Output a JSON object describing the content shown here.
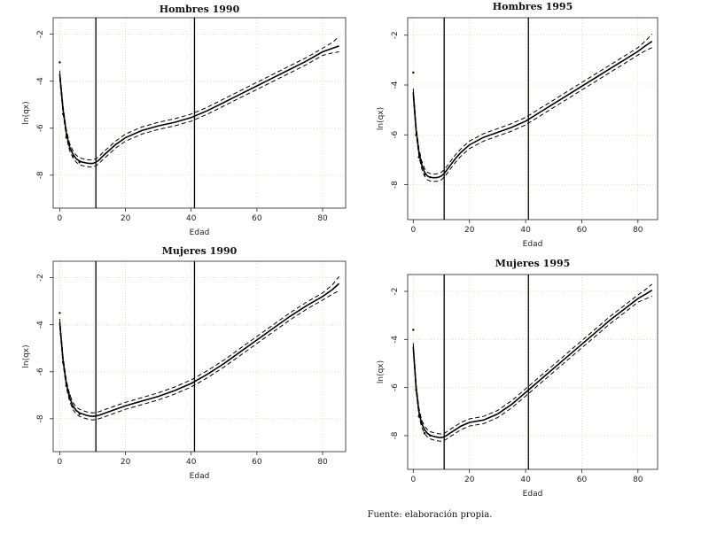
{
  "source_note": "Fuente: elaboración propia.",
  "chart_data": [
    {
      "type": "line",
      "title": "Hombres 1990",
      "xlabel": "Edad",
      "ylabel": "ln(qx)",
      "xlim": [
        -2,
        87
      ],
      "ylim": [
        -9.4,
        -1.3
      ],
      "xticks": [
        0,
        20,
        40,
        60,
        80
      ],
      "yticks": [
        -2,
        -4,
        -6,
        -8
      ],
      "vlines": [
        11,
        41
      ],
      "grid": true,
      "series": [
        {
          "name": "estimate",
          "x": [
            0,
            1,
            2,
            3,
            4,
            5,
            6,
            7,
            8,
            9,
            10,
            11,
            12,
            13,
            15,
            17,
            20,
            25,
            30,
            35,
            40,
            45,
            50,
            55,
            60,
            65,
            70,
            75,
            80,
            83,
            85
          ],
          "y": [
            -3.7,
            -5.2,
            -6.2,
            -6.8,
            -7.1,
            -7.3,
            -7.4,
            -7.45,
            -7.48,
            -7.5,
            -7.5,
            -7.45,
            -7.35,
            -7.2,
            -6.95,
            -6.7,
            -6.4,
            -6.1,
            -5.9,
            -5.75,
            -5.55,
            -5.25,
            -4.9,
            -4.55,
            -4.2,
            -3.85,
            -3.5,
            -3.15,
            -2.75,
            -2.6,
            -2.5
          ]
        },
        {
          "name": "upper",
          "x": [
            0,
            1,
            2,
            3,
            4,
            5,
            6,
            7,
            8,
            9,
            10,
            11,
            12,
            13,
            15,
            17,
            20,
            25,
            30,
            35,
            40,
            45,
            50,
            55,
            60,
            65,
            70,
            75,
            80,
            83,
            85
          ],
          "y": [
            -3.55,
            -5.05,
            -6.05,
            -6.65,
            -6.95,
            -7.15,
            -7.25,
            -7.3,
            -7.33,
            -7.35,
            -7.35,
            -7.3,
            -7.2,
            -7.05,
            -6.8,
            -6.55,
            -6.25,
            -5.95,
            -5.75,
            -5.6,
            -5.4,
            -5.1,
            -4.75,
            -4.4,
            -4.05,
            -3.7,
            -3.35,
            -3.0,
            -2.6,
            -2.35,
            -2.1
          ]
        },
        {
          "name": "lower",
          "x": [
            0,
            1,
            2,
            3,
            4,
            5,
            6,
            7,
            8,
            9,
            10,
            11,
            12,
            13,
            15,
            17,
            20,
            25,
            30,
            35,
            40,
            45,
            50,
            55,
            60,
            65,
            70,
            75,
            80,
            83,
            85
          ],
          "y": [
            -3.85,
            -5.35,
            -6.35,
            -6.95,
            -7.25,
            -7.45,
            -7.55,
            -7.6,
            -7.63,
            -7.65,
            -7.65,
            -7.6,
            -7.5,
            -7.35,
            -7.1,
            -6.85,
            -6.55,
            -6.25,
            -6.05,
            -5.9,
            -5.7,
            -5.4,
            -5.05,
            -4.7,
            -4.35,
            -4.0,
            -3.65,
            -3.3,
            -2.9,
            -2.8,
            -2.75
          ]
        },
        {
          "name": "observed",
          "x": [
            0,
            1,
            2,
            3,
            4,
            6
          ],
          "y": [
            -3.2,
            -5.4,
            -6.4,
            -6.7,
            -7.2,
            -7.45
          ]
        }
      ]
    },
    {
      "type": "line",
      "title": "Hombres 1995",
      "xlabel": "Edad",
      "ylabel": "ln(qx)",
      "xlim": [
        -2,
        87
      ],
      "ylim": [
        -9.4,
        -1.3
      ],
      "xticks": [
        0,
        20,
        40,
        60,
        80
      ],
      "yticks": [
        -2,
        -4,
        -6,
        -8
      ],
      "vlines": [
        11,
        41
      ],
      "grid": true,
      "series": [
        {
          "name": "estimate",
          "x": [
            0,
            1,
            2,
            3,
            4,
            5,
            6,
            7,
            8,
            9,
            10,
            11,
            12,
            13,
            15,
            17,
            20,
            25,
            30,
            35,
            40,
            45,
            50,
            55,
            60,
            65,
            70,
            75,
            80,
            83,
            85
          ],
          "y": [
            -4.3,
            -5.8,
            -6.7,
            -7.2,
            -7.5,
            -7.65,
            -7.7,
            -7.72,
            -7.72,
            -7.7,
            -7.65,
            -7.55,
            -7.4,
            -7.25,
            -6.95,
            -6.7,
            -6.4,
            -6.1,
            -5.9,
            -5.7,
            -5.45,
            -5.1,
            -4.75,
            -4.4,
            -4.05,
            -3.7,
            -3.35,
            -3.0,
            -2.65,
            -2.4,
            -2.25
          ]
        },
        {
          "name": "upper",
          "x": [
            0,
            1,
            2,
            3,
            4,
            5,
            6,
            7,
            8,
            9,
            10,
            11,
            12,
            13,
            15,
            17,
            20,
            25,
            30,
            35,
            40,
            45,
            50,
            55,
            60,
            65,
            70,
            75,
            80,
            83,
            85
          ],
          "y": [
            -4.15,
            -5.65,
            -6.55,
            -7.05,
            -7.35,
            -7.5,
            -7.55,
            -7.57,
            -7.57,
            -7.55,
            -7.5,
            -7.4,
            -7.25,
            -7.1,
            -6.8,
            -6.55,
            -6.25,
            -5.95,
            -5.75,
            -5.55,
            -5.3,
            -4.95,
            -4.6,
            -4.25,
            -3.9,
            -3.55,
            -3.2,
            -2.85,
            -2.5,
            -2.2,
            -1.95
          ]
        },
        {
          "name": "lower",
          "x": [
            0,
            1,
            2,
            3,
            4,
            5,
            6,
            7,
            8,
            9,
            10,
            11,
            12,
            13,
            15,
            17,
            20,
            25,
            30,
            35,
            40,
            45,
            50,
            55,
            60,
            65,
            70,
            75,
            80,
            83,
            85
          ],
          "y": [
            -4.45,
            -5.95,
            -6.85,
            -7.35,
            -7.65,
            -7.8,
            -7.85,
            -7.87,
            -7.87,
            -7.85,
            -7.8,
            -7.7,
            -7.55,
            -7.4,
            -7.1,
            -6.85,
            -6.55,
            -6.25,
            -6.05,
            -5.85,
            -5.6,
            -5.25,
            -4.9,
            -4.55,
            -4.2,
            -3.85,
            -3.5,
            -3.15,
            -2.8,
            -2.6,
            -2.5
          ]
        },
        {
          "name": "observed",
          "x": [
            0,
            1,
            2,
            3,
            4,
            6
          ],
          "y": [
            -3.5,
            -6.0,
            -6.9,
            -7.1,
            -7.6,
            -7.7
          ]
        }
      ]
    },
    {
      "type": "line",
      "title": "Mujeres 1990",
      "xlabel": "Edad",
      "ylabel": "ln(qx)",
      "xlim": [
        -2,
        87
      ],
      "ylim": [
        -9.4,
        -1.3
      ],
      "xticks": [
        0,
        20,
        40,
        60,
        80
      ],
      "yticks": [
        -2,
        -4,
        -6,
        -8
      ],
      "vlines": [
        11,
        41
      ],
      "grid": true,
      "series": [
        {
          "name": "estimate",
          "x": [
            0,
            1,
            2,
            3,
            4,
            5,
            6,
            7,
            8,
            9,
            10,
            11,
            12,
            13,
            15,
            17,
            20,
            25,
            30,
            35,
            40,
            45,
            50,
            55,
            60,
            65,
            70,
            75,
            80,
            83,
            85
          ],
          "y": [
            -3.9,
            -5.5,
            -6.5,
            -7.1,
            -7.45,
            -7.65,
            -7.75,
            -7.8,
            -7.85,
            -7.88,
            -7.9,
            -7.88,
            -7.85,
            -7.8,
            -7.7,
            -7.6,
            -7.45,
            -7.25,
            -7.05,
            -6.8,
            -6.5,
            -6.1,
            -5.65,
            -5.15,
            -4.65,
            -4.15,
            -3.65,
            -3.2,
            -2.8,
            -2.5,
            -2.25
          ]
        },
        {
          "name": "upper",
          "x": [
            0,
            1,
            2,
            3,
            4,
            5,
            6,
            7,
            8,
            9,
            10,
            11,
            12,
            13,
            15,
            17,
            20,
            25,
            30,
            35,
            40,
            45,
            50,
            55,
            60,
            65,
            70,
            75,
            80,
            83,
            85
          ],
          "y": [
            -3.75,
            -5.35,
            -6.35,
            -6.95,
            -7.3,
            -7.5,
            -7.6,
            -7.65,
            -7.7,
            -7.73,
            -7.75,
            -7.73,
            -7.7,
            -7.65,
            -7.55,
            -7.45,
            -7.3,
            -7.1,
            -6.9,
            -6.65,
            -6.35,
            -5.95,
            -5.5,
            -5.0,
            -4.5,
            -4.0,
            -3.5,
            -3.05,
            -2.65,
            -2.3,
            -1.95
          ]
        },
        {
          "name": "lower",
          "x": [
            0,
            1,
            2,
            3,
            4,
            5,
            6,
            7,
            8,
            9,
            10,
            11,
            12,
            13,
            15,
            17,
            20,
            25,
            30,
            35,
            40,
            45,
            50,
            55,
            60,
            65,
            70,
            75,
            80,
            83,
            85
          ],
          "y": [
            -4.05,
            -5.65,
            -6.65,
            -7.25,
            -7.6,
            -7.8,
            -7.9,
            -7.95,
            -8.0,
            -8.03,
            -8.05,
            -8.03,
            -8.0,
            -7.95,
            -7.85,
            -7.75,
            -7.6,
            -7.4,
            -7.2,
            -6.95,
            -6.65,
            -6.25,
            -5.8,
            -5.3,
            -4.8,
            -4.3,
            -3.8,
            -3.35,
            -2.95,
            -2.7,
            -2.55
          ]
        },
        {
          "name": "observed",
          "x": [
            0,
            1,
            2,
            3,
            4,
            6
          ],
          "y": [
            -3.5,
            -5.6,
            -6.6,
            -7.0,
            -7.5,
            -7.8
          ]
        }
      ]
    },
    {
      "type": "line",
      "title": "Mujeres 1995",
      "xlabel": "Edad",
      "ylabel": "ln(qx)",
      "xlim": [
        -2,
        87
      ],
      "ylim": [
        -9.4,
        -1.3
      ],
      "xticks": [
        0,
        20,
        40,
        60,
        80
      ],
      "yticks": [
        -2,
        -4,
        -6,
        -8
      ],
      "vlines": [
        11,
        41
      ],
      "grid": true,
      "series": [
        {
          "name": "estimate",
          "x": [
            0,
            1,
            2,
            3,
            4,
            5,
            6,
            7,
            8,
            9,
            10,
            11,
            12,
            13,
            15,
            17,
            20,
            25,
            30,
            35,
            40,
            45,
            50,
            55,
            60,
            65,
            70,
            75,
            80,
            83,
            85
          ],
          "y": [
            -4.3,
            -6.0,
            -7.0,
            -7.5,
            -7.75,
            -7.9,
            -7.98,
            -8.02,
            -8.05,
            -8.07,
            -8.08,
            -8.05,
            -7.98,
            -7.9,
            -7.75,
            -7.6,
            -7.45,
            -7.35,
            -7.1,
            -6.7,
            -6.2,
            -5.7,
            -5.2,
            -4.7,
            -4.2,
            -3.7,
            -3.2,
            -2.75,
            -2.3,
            -2.1,
            -1.95
          ]
        },
        {
          "name": "upper",
          "x": [
            0,
            1,
            2,
            3,
            4,
            5,
            6,
            7,
            8,
            9,
            10,
            11,
            12,
            13,
            15,
            17,
            20,
            25,
            30,
            35,
            40,
            45,
            50,
            55,
            60,
            65,
            70,
            75,
            80,
            83,
            85
          ],
          "y": [
            -4.15,
            -5.85,
            -6.85,
            -7.35,
            -7.6,
            -7.75,
            -7.83,
            -7.87,
            -7.9,
            -7.92,
            -7.93,
            -7.9,
            -7.83,
            -7.75,
            -7.6,
            -7.45,
            -7.3,
            -7.2,
            -6.95,
            -6.55,
            -6.05,
            -5.55,
            -5.05,
            -4.55,
            -4.05,
            -3.55,
            -3.05,
            -2.6,
            -2.15,
            -1.9,
            -1.7
          ]
        },
        {
          "name": "lower",
          "x": [
            0,
            1,
            2,
            3,
            4,
            5,
            6,
            7,
            8,
            9,
            10,
            11,
            12,
            13,
            15,
            17,
            20,
            25,
            30,
            35,
            40,
            45,
            50,
            55,
            60,
            65,
            70,
            75,
            80,
            83,
            85
          ],
          "y": [
            -4.45,
            -6.15,
            -7.15,
            -7.65,
            -7.9,
            -8.05,
            -8.13,
            -8.17,
            -8.2,
            -8.22,
            -8.23,
            -8.2,
            -8.13,
            -8.05,
            -7.9,
            -7.75,
            -7.6,
            -7.5,
            -7.25,
            -6.85,
            -6.35,
            -5.85,
            -5.35,
            -4.85,
            -4.35,
            -3.85,
            -3.35,
            -2.9,
            -2.45,
            -2.3,
            -2.2
          ]
        },
        {
          "name": "observed",
          "x": [
            0,
            1,
            2,
            3,
            4,
            6
          ],
          "y": [
            -3.6,
            -6.1,
            -7.2,
            -7.5,
            -7.9,
            -8.0
          ]
        }
      ]
    }
  ]
}
